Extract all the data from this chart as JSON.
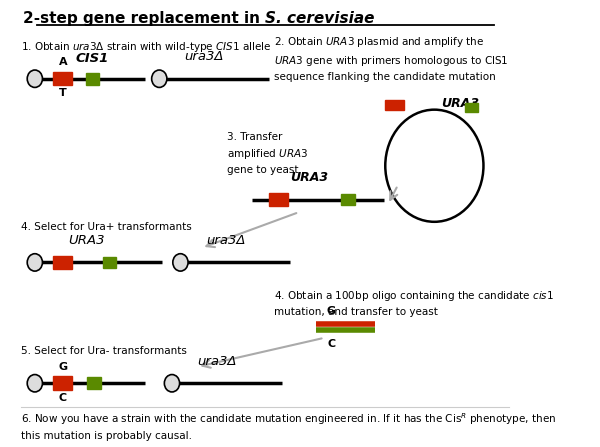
{
  "bg_color": "#ffffff",
  "fig_width": 6.0,
  "fig_height": 4.47,
  "red": "#cc2200",
  "green": "#5a8a00",
  "gray": "#aaaaaa",
  "black": "#000000",
  "title_normal": "2-step gene replacement in ",
  "title_italic": "S. cerevisiae",
  "step1_label": "1. Obtain $ura3\\Delta$ strain with wild-type $CIS1$ allele",
  "step2_label": "2. Obtain $URA3$ plasmid and amplify the\n$URA3$ gene with primers homologous to CIS1\nsequence flanking the candidate mutation",
  "step3_label": "3. Transfer\namplified $URA3$\ngene to yeast",
  "step4a_label": "4. Select for Ura+ transformants",
  "step4b_label": "4. Obtain a 100bp oligo containing the candidate $cis1$\nmutation, and transfer to yeast",
  "step5_label": "5. Select for Ura- transformants",
  "step6_label": "6. Now you have a strain with the candidate mutation engineered in. If it has the Cis$^R$ phenotype, then\nthis mutation is probably causal."
}
